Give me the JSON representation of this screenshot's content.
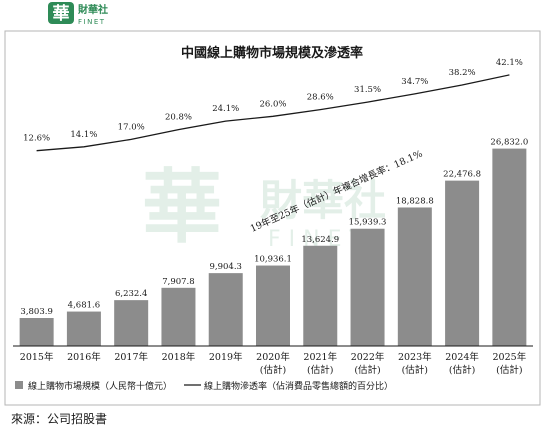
{
  "brand": {
    "logo_char": "華",
    "cn": "財華社",
    "en": "FINET",
    "color": "#2e8b57"
  },
  "chart_data": {
    "type": "bar",
    "title": "中國線上購物市場規模及滲透率",
    "categories": [
      "2015年",
      "2016年",
      "2017年",
      "2018年",
      "2019年",
      "2020年",
      "2021年",
      "2022年",
      "2023年",
      "2024年",
      "2025年"
    ],
    "category_sublabels": [
      "",
      "",
      "",
      "",
      "",
      "(估計)",
      "(估計)",
      "(估計)",
      "(估計)",
      "(估計)",
      "(估計)"
    ],
    "series": [
      {
        "name": "線上購物市場規模（人民幣十億元）",
        "type": "bar",
        "color": "#8c8c8c",
        "values": [
          3803.9,
          4681.6,
          6232.4,
          7907.8,
          9904.3,
          10936.1,
          13624.9,
          15939.3,
          18828.8,
          22476.8,
          26832.0
        ],
        "labels": [
          "3,803.9",
          "4,681.6",
          "6,232.4",
          "7,907.8",
          "9,904.3",
          "10,936.1",
          "13,624.9",
          "15,939.3",
          "18,828.8",
          "22,476.8",
          "26,832.0"
        ]
      },
      {
        "name": "線上購物滲透率（佔消費品零售總額的百分比）",
        "type": "line",
        "color": "#1a1a1a",
        "values": [
          12.6,
          14.1,
          17.0,
          20.8,
          24.1,
          26.0,
          28.6,
          31.5,
          34.7,
          38.2,
          42.1
        ],
        "labels": [
          "12.6%",
          "14.1%",
          "17.0%",
          "20.8%",
          "24.1%",
          "26.0%",
          "28.6%",
          "31.5%",
          "34.7%",
          "38.2%",
          "42.1%"
        ]
      }
    ],
    "ylim": [
      0,
      28000
    ],
    "cagr_annotation": "19年至25年（估計）年複合增長率：18.1%",
    "legend_placement": "bottom"
  },
  "source": "來源：公司招股書"
}
